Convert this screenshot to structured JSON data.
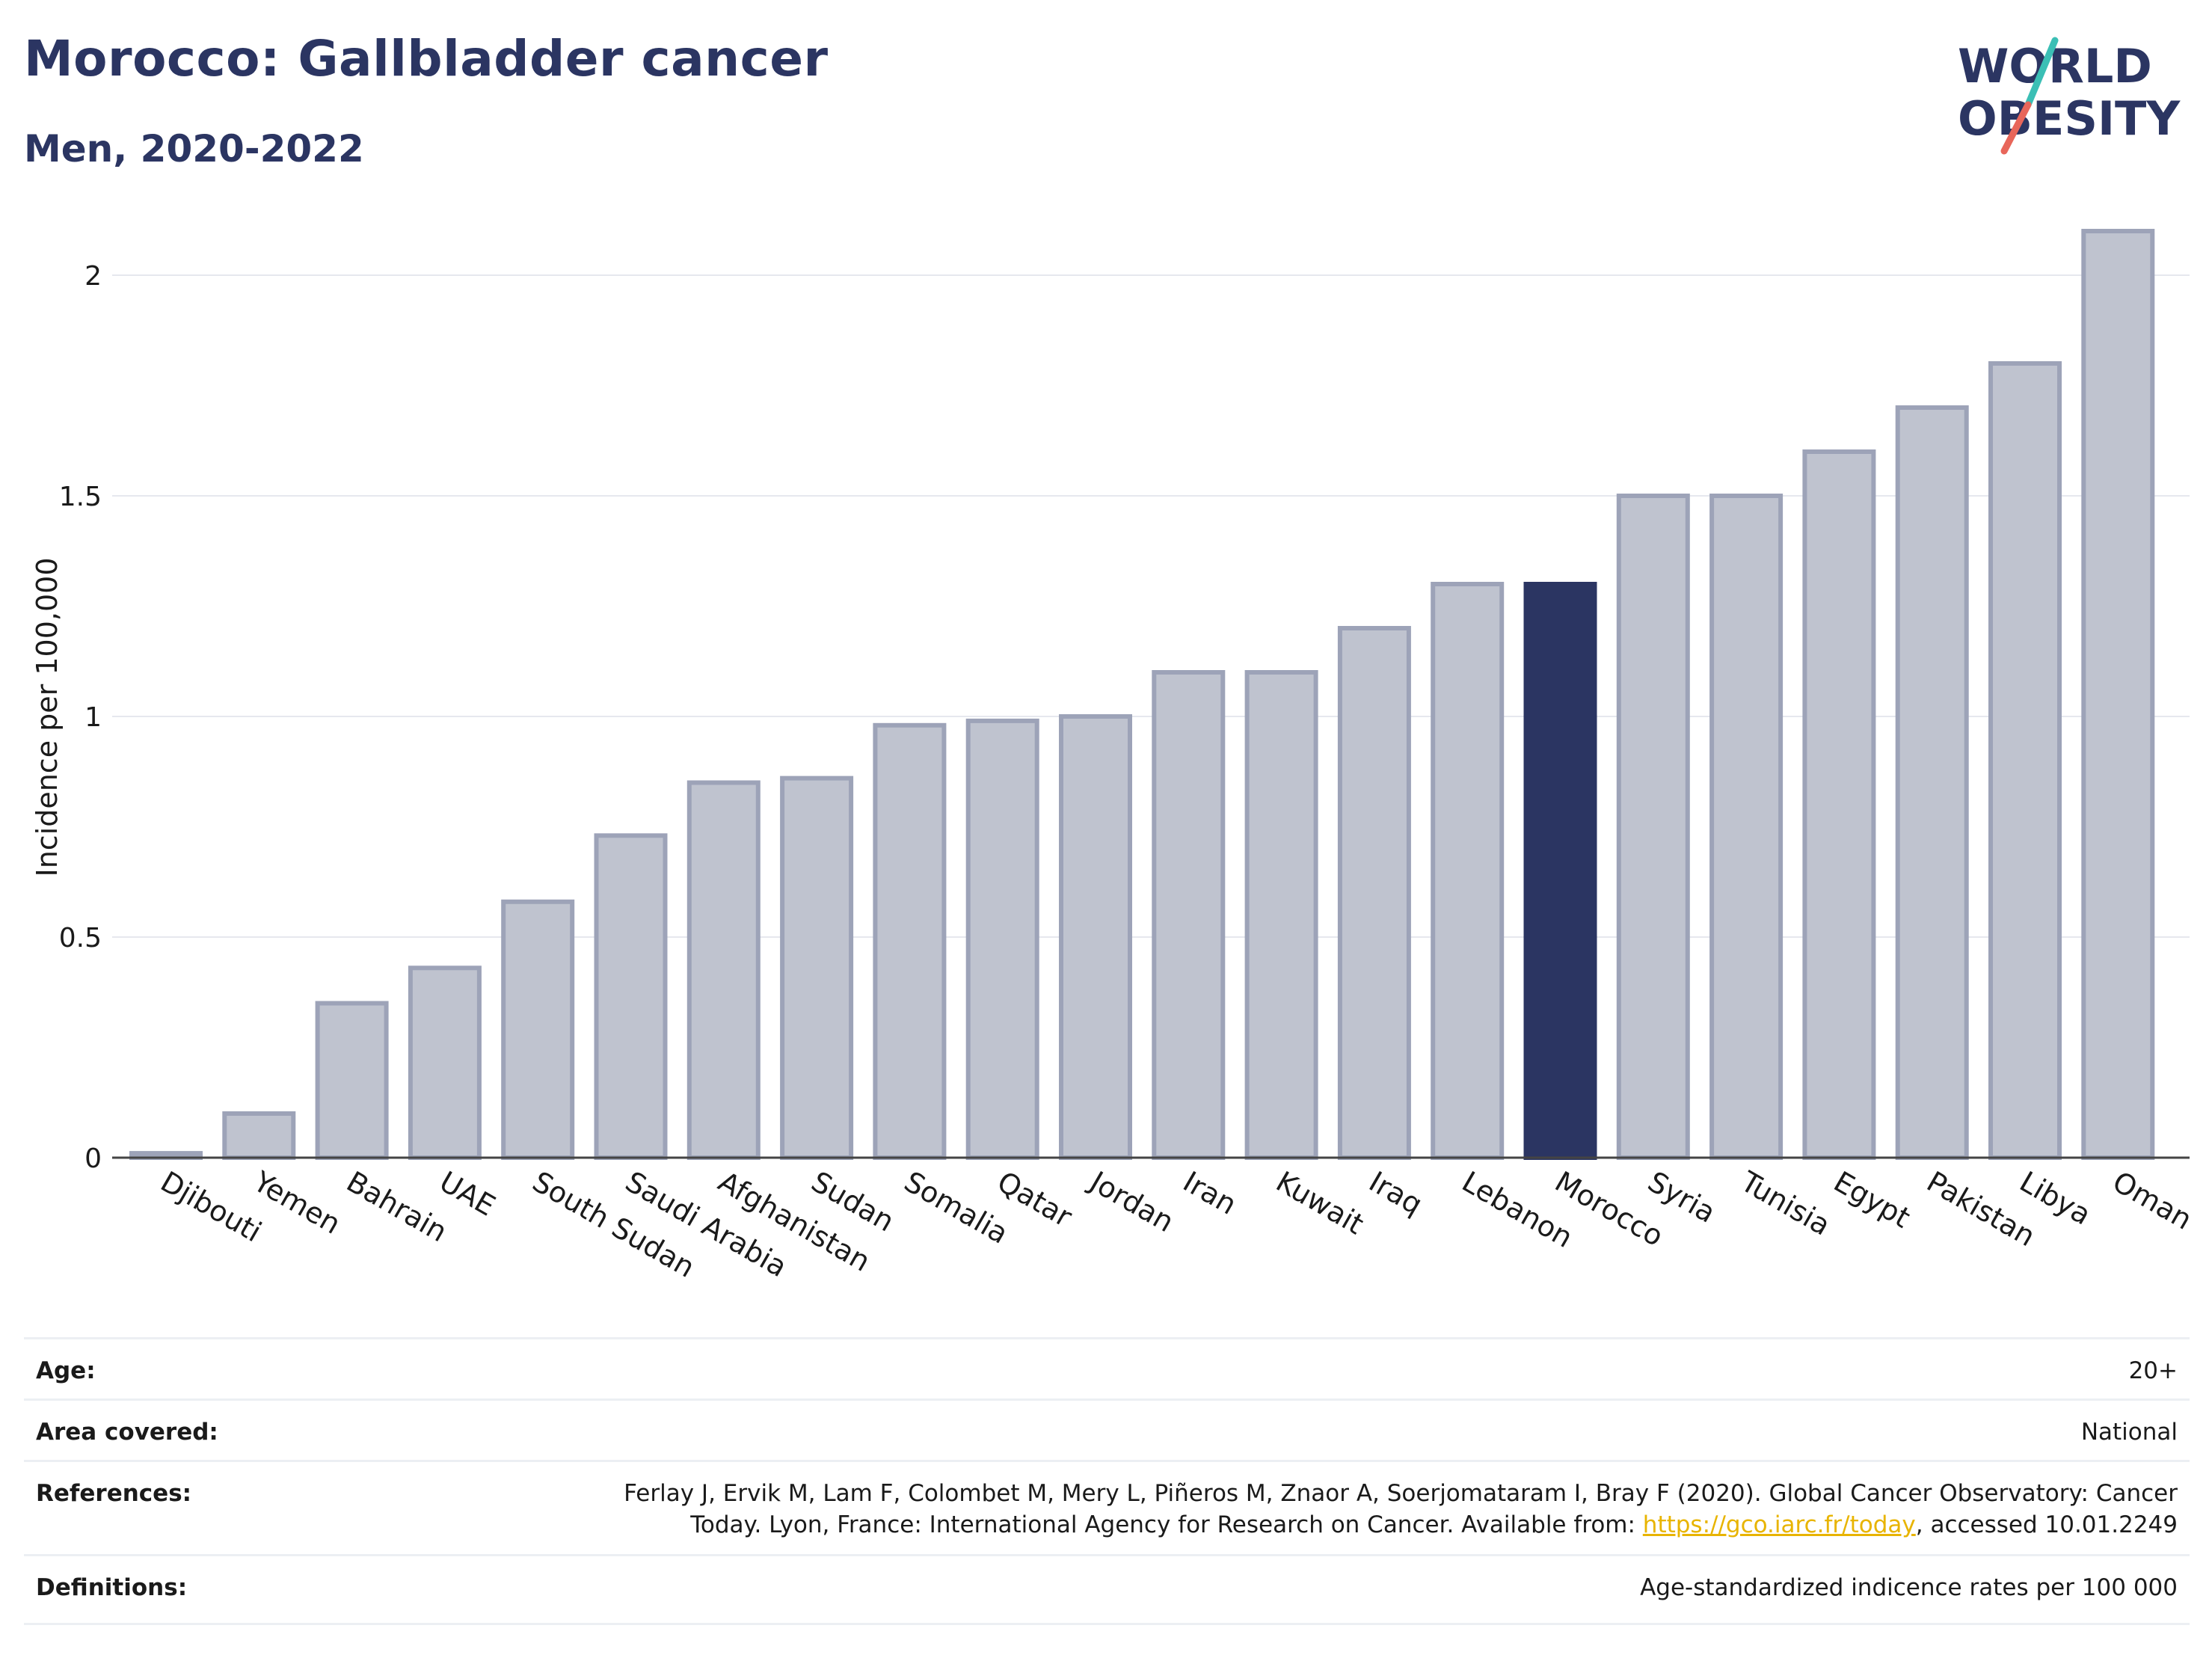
{
  "title": "Morocco: Gallbladder cancer",
  "subtitle": "Men, 2020-2022",
  "logo": {
    "line1": "WORLD",
    "line2": "OBESITY"
  },
  "colors": {
    "highlight": "#2b3562",
    "bar_fill": "#bfc3cf",
    "bar_stroke": "#9da3b8",
    "title": "#2b3562",
    "link": "#e8b400",
    "logo_teal": "#3bbfb5",
    "logo_red": "#e8665a"
  },
  "chart_data": {
    "type": "bar",
    "ylabel": "Incidence per 100,000",
    "xlabel": "",
    "ylim": [
      0,
      2.2
    ],
    "yticks": [
      0,
      0.5,
      1,
      1.5,
      2
    ],
    "ytick_labels": [
      "0",
      "0.5",
      "1",
      "1.5",
      "2"
    ],
    "grid": true,
    "highlight_category": "Morocco",
    "categories": [
      "Djibouti",
      "Yemen",
      "Bahrain",
      "UAE",
      "South Sudan",
      "Saudi Arabia",
      "Afghanistan",
      "Sudan",
      "Somalia",
      "Qatar",
      "Jordan",
      "Iran",
      "Kuwait",
      "Iraq",
      "Lebanon",
      "Morocco",
      "Syria",
      "Tunisia",
      "Egypt",
      "Pakistan",
      "Libya",
      "Oman"
    ],
    "values": [
      0.01,
      0.1,
      0.35,
      0.43,
      0.58,
      0.73,
      0.85,
      0.86,
      0.98,
      0.99,
      1.0,
      1.1,
      1.1,
      1.2,
      1.3,
      1.3,
      1.5,
      1.5,
      1.6,
      1.7,
      1.8,
      2.1
    ]
  },
  "meta": {
    "age": {
      "label": "Age:",
      "value": "20+"
    },
    "area": {
      "label": "Area covered:",
      "value": "National"
    },
    "references": {
      "label": "References:",
      "line1": "Ferlay J, Ervik M, Lam F, Colombet M, Mery L, Piñeros M, Znaor A, Soerjomataram I, Bray F (2020). Global Cancer Observatory: Cancer",
      "line2_prefix": "Today. Lyon, France: International Agency for Research on Cancer. Available from: ",
      "link": "https://gco.iarc.fr/today",
      "line2_suffix": ", accessed 10.01.2249"
    },
    "definitions": {
      "label": "Definitions:",
      "value": "Age-standardized indicence rates per 100 000"
    }
  }
}
